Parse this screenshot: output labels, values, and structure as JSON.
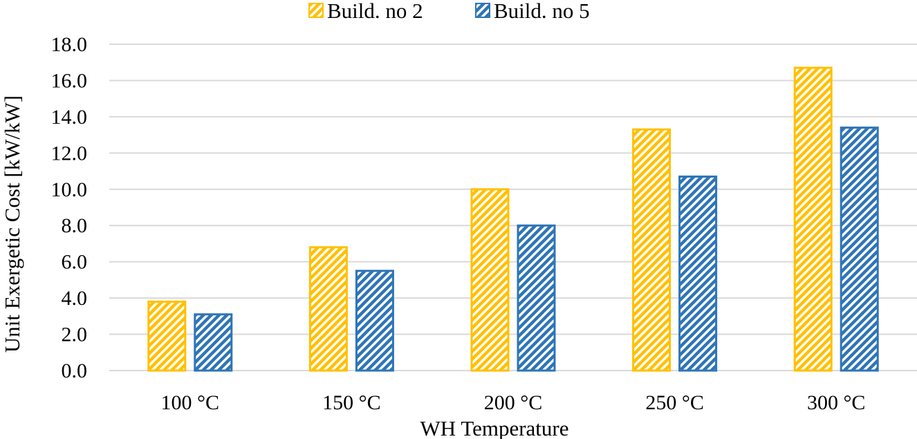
{
  "chart_data": {
    "type": "bar",
    "title": "",
    "xlabel": "WH Temperature",
    "ylabel": "Unit Exergetic  Cost [kW/kW]",
    "categories": [
      "100 °C",
      "150 °C",
      "200 °C",
      "250 °C",
      "300 °C"
    ],
    "series": [
      {
        "name": "Build.  no 2",
        "values": [
          3.8,
          6.8,
          10.0,
          13.3,
          16.7
        ],
        "color": "#ffc000",
        "pattern": "diagonal-stripes"
      },
      {
        "name": "Build.  no 5",
        "values": [
          3.1,
          5.5,
          8.0,
          10.7,
          13.4
        ],
        "color": "#2e75b6",
        "pattern": "diagonal-stripes"
      }
    ],
    "ylim": [
      0,
      18
    ],
    "yticks": [
      "0.0",
      "2.0",
      "4.0",
      "6.0",
      "8.0",
      "10.0",
      "12.0",
      "14.0",
      "16.0",
      "18.0"
    ],
    "grid": true,
    "legend_position": "top-center"
  }
}
